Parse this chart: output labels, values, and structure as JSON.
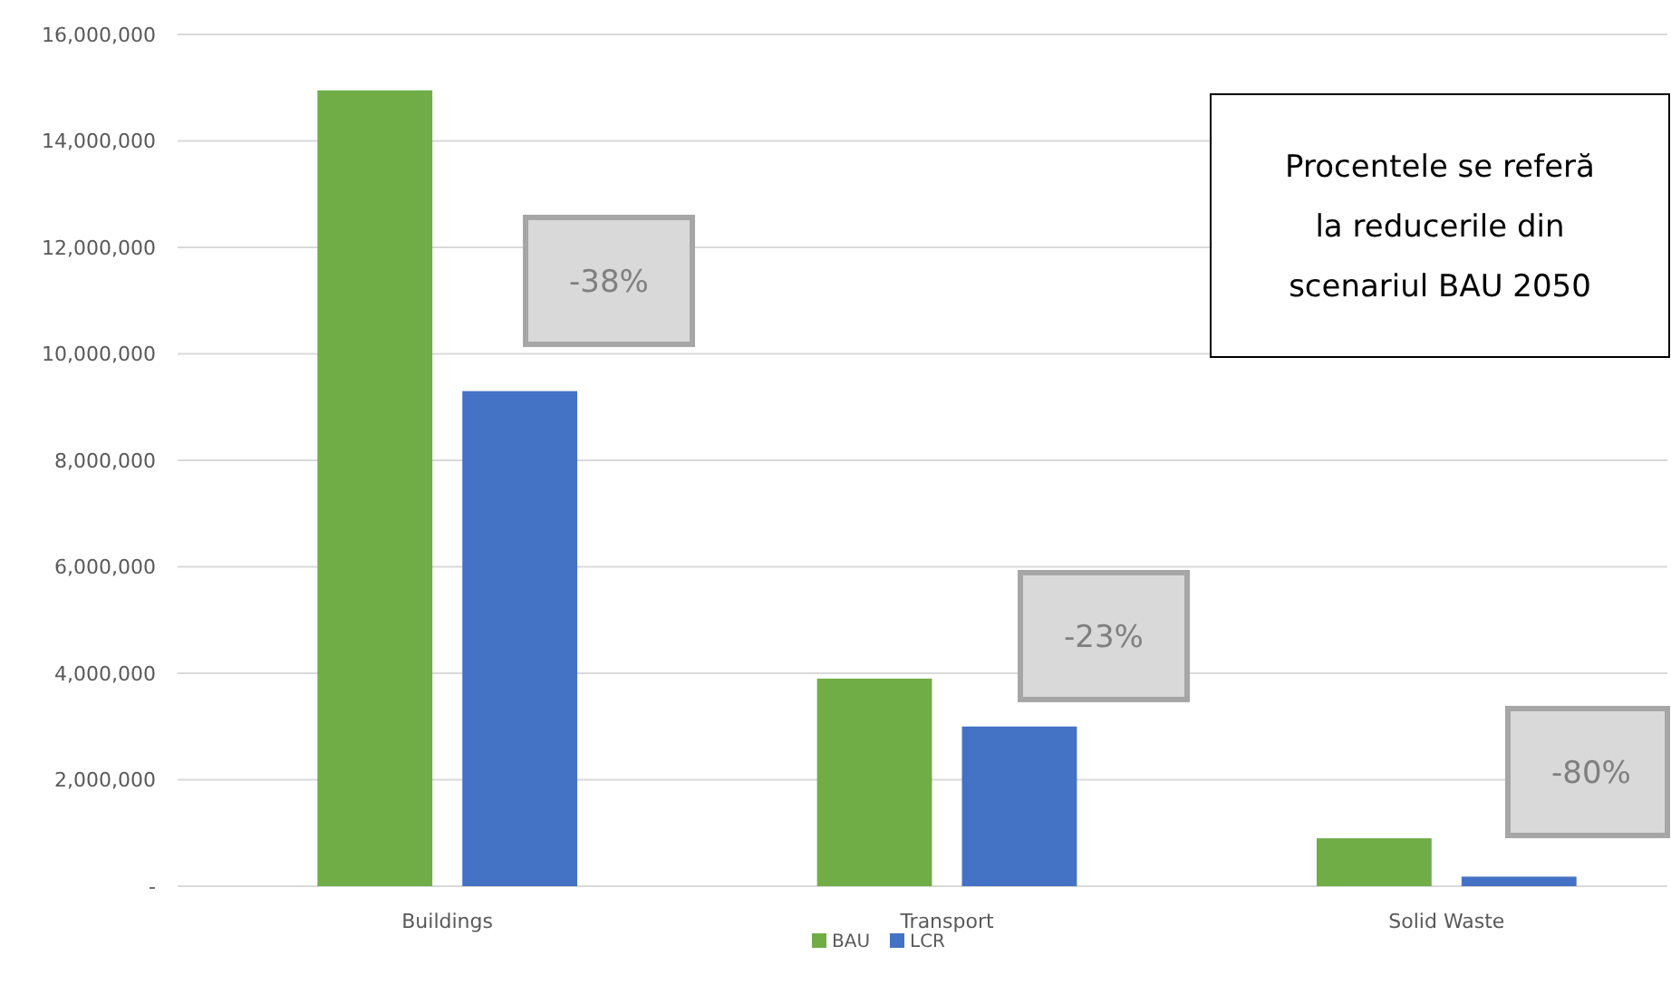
{
  "chart_data": {
    "type": "bar",
    "categories": [
      "Buildings",
      "Transport",
      "Solid Waste"
    ],
    "series": [
      {
        "name": "BAU",
        "color": "#70ad47",
        "values": [
          14950000,
          3900000,
          900000
        ]
      },
      {
        "name": "LCR",
        "color": "#4472c4",
        "values": [
          9300000,
          3000000,
          180000
        ]
      }
    ],
    "ylim": [
      0,
      16000000
    ],
    "yticks": [
      {
        "value": 0,
        "label": "-"
      },
      {
        "value": 2000000,
        "label": "2,000,000"
      },
      {
        "value": 4000000,
        "label": "4,000,000"
      },
      {
        "value": 6000000,
        "label": "6,000,000"
      },
      {
        "value": 8000000,
        "label": "8,000,000"
      },
      {
        "value": 10000000,
        "label": "10,000,000"
      },
      {
        "value": 12000000,
        "label": "12,000,000"
      },
      {
        "value": 14000000,
        "label": "14,000,000"
      },
      {
        "value": 16000000,
        "label": "16,000,000"
      }
    ],
    "grid": "y",
    "legend": "bottom",
    "annotations": [
      "-38%",
      "-23%",
      "-80%",
      "Procentele se referă la reducerile din scenariul BAU 2050"
    ]
  }
}
